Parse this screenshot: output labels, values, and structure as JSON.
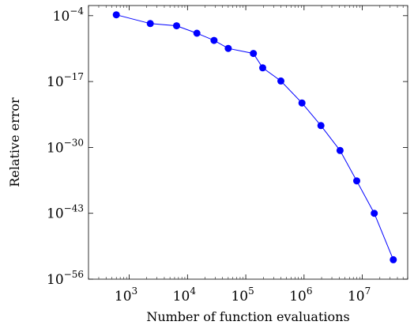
{
  "chart_data": {
    "type": "line",
    "title": "",
    "xlabel": "Number of function evaluations",
    "ylabel": "Relative error",
    "x_scale": "log",
    "y_scale": "log",
    "xlim": [
      200,
      60000000
    ],
    "ylim": [
      1e-56,
      0.01
    ],
    "grid": false,
    "legend": "none",
    "x_ticks": [
      {
        "base": "10",
        "exp": "3",
        "value": 1000
      },
      {
        "base": "10",
        "exp": "4",
        "value": 10000
      },
      {
        "base": "10",
        "exp": "5",
        "value": 100000
      },
      {
        "base": "10",
        "exp": "6",
        "value": 1000000
      },
      {
        "base": "10",
        "exp": "7",
        "value": 10000000
      }
    ],
    "y_ticks": [
      {
        "base": "10",
        "exp": "−4",
        "value": 0.0001
      },
      {
        "base": "10",
        "exp": "−17",
        "value": 1e-17
      },
      {
        "base": "10",
        "exp": "−30",
        "value": 1e-30
      },
      {
        "base": "10",
        "exp": "−43",
        "value": 1e-43
      },
      {
        "base": "10",
        "exp": "−56",
        "value": 1e-56
      }
    ],
    "series": [
      {
        "color": "#0000ff",
        "marker": "circle",
        "x": [
          600,
          2300,
          6500,
          14500,
          28500,
          50000,
          135000,
          195000,
          400000,
          920000,
          1950000,
          4150000,
          8000000,
          16000000,
          34000000
        ],
        "y": [
          0.00015,
          2.8e-06,
          1e-06,
          3.5e-08,
          1.3e-09,
          3.5e-11,
          3.5e-12,
          5e-15,
          1.3e-17,
          6e-22,
          2e-26,
          2.5e-31,
          2.5e-37,
          1e-43,
          7e-53
        ]
      }
    ]
  }
}
